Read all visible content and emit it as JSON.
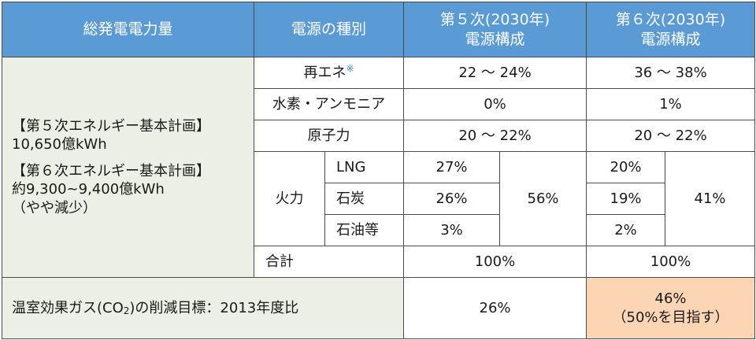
{
  "header": {
    "total": "総発電電力量",
    "type": "電源の種別",
    "plan5_line1": "第５次(2030年)",
    "plan5_line2": "電源構成",
    "plan6_line1": "第６次(2030年)",
    "plan6_line2": "電源構成"
  },
  "total_cell": {
    "plan5_title": "【第５次エネルギー基本計画】",
    "plan5_value": "10,650億kWh",
    "plan6_title": "【第６次エネルギー基本計画】",
    "plan6_value": "約9,300~9,400億kWh",
    "plan6_note": "（やや減少）"
  },
  "rows": {
    "renewable": {
      "label": "再エネ",
      "mark": "※",
      "plan5": "22 ～ 24%",
      "plan6": "36 ～ 38%"
    },
    "hydrogen": {
      "label": "水素・アンモニア",
      "plan5": "0%",
      "plan6": "1%"
    },
    "nuclear": {
      "label": "原子力",
      "plan5": "20 ～ 22%",
      "plan6": "20 ～ 22%"
    },
    "thermal": {
      "label": "火力",
      "lng": {
        "label": "LNG",
        "plan5": "27%",
        "plan6": "20%"
      },
      "coal": {
        "label": "石炭",
        "plan5": "26%",
        "plan6": "19%"
      },
      "oil": {
        "label": "石油等",
        "plan5": "3%",
        "plan6": "2%"
      },
      "plan5_total": "56%",
      "plan6_total": "41%"
    },
    "sum": {
      "label": "合計",
      "plan5": "100%",
      "plan6": "100%"
    }
  },
  "co2": {
    "label_prefix": "温室効果ガス(CO",
    "label_sub": "2",
    "label_suffix": ")の削減目標：2013年度比",
    "plan5": "26%",
    "plan6_line1": "46%",
    "plan6_line2": "（50%を目指す）"
  },
  "colors": {
    "header_bg": "#5b9bd5",
    "left_bg": "#ebefe6",
    "highlight_bg": "#fcd5b4",
    "mark": "#2e86d1"
  }
}
